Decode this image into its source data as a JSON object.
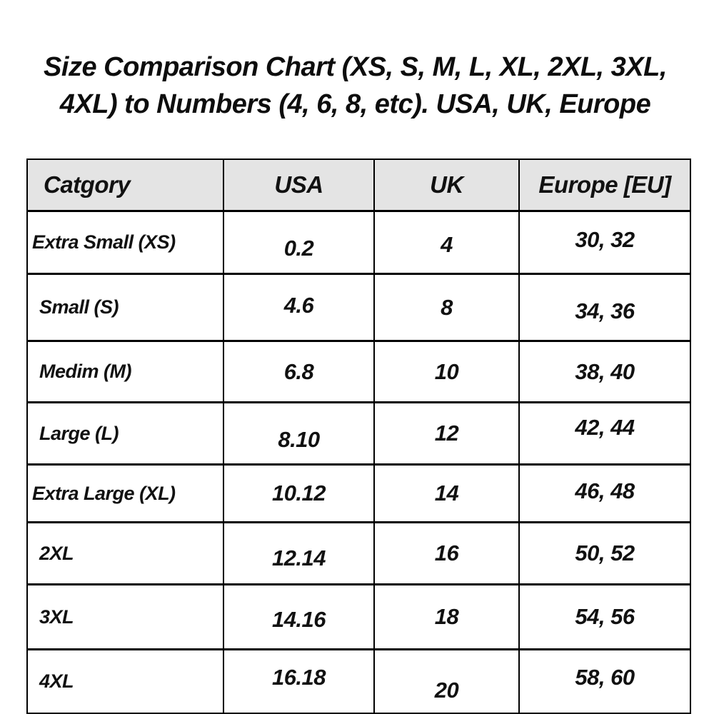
{
  "title": {
    "line1": "Size Comparison Chart (XS, S, M, L, XL, 2XL, 3XL,",
    "line2": "4XL) to Numbers (4, 6, 8, etc). USA, UK, Europe"
  },
  "chart_data": {
    "type": "table",
    "title": "Size Comparison Chart (XS, S, M, L, XL, 2XL, 3XL, 4XL) to Numbers (4, 6, 8, etc). USA, UK, Europe",
    "columns": [
      "Catgory",
      "USA",
      "UK",
      "Europe [EU]"
    ],
    "rows": [
      [
        "Extra Small (XS)",
        "0.2",
        "4",
        "30, 32"
      ],
      [
        "Small (S)",
        "4.6",
        "8",
        "34, 36"
      ],
      [
        "Medim (M)",
        "6.8",
        "10",
        "38, 40"
      ],
      [
        "Large (L)",
        "8.10",
        "12",
        "42, 44"
      ],
      [
        "Extra Large (XL)",
        "10.12",
        "14",
        "46, 48"
      ],
      [
        "2XL",
        "12.14",
        "16",
        "50, 52"
      ],
      [
        "3XL",
        "14.16",
        "18",
        "54, 56"
      ],
      [
        "4XL",
        "16.18",
        "20",
        "58, 60"
      ]
    ],
    "layout": {
      "header_background": "#e4e4e4",
      "grid_on": true,
      "column_alignment": [
        "left",
        "center",
        "center",
        "center"
      ]
    }
  },
  "colors": {
    "background": "#ffffff",
    "text": "#111111",
    "table_border": "#000000",
    "header_bg": "#e4e4e4"
  }
}
